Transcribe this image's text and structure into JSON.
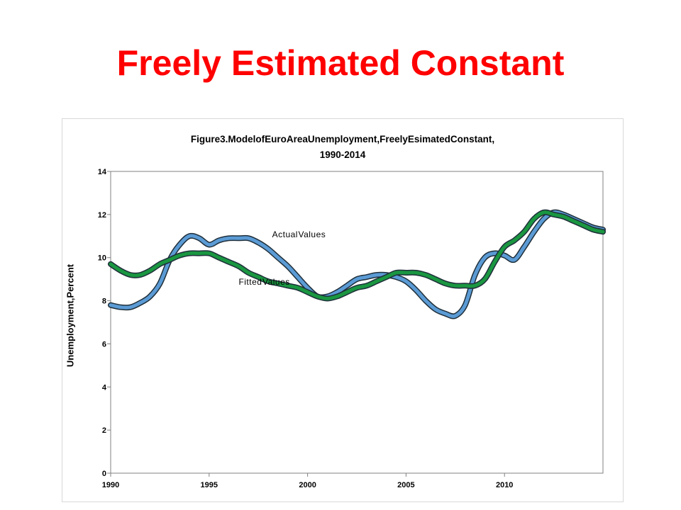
{
  "slide": {
    "title": "Freely Estimated Constant"
  },
  "chart_data": {
    "type": "line",
    "title_line1": "Figure\u001f3.\u001fModel\u001fof\u001fEuro\u001fArea\u001fUnemployment,\u001fFreely\u001fEs\u001fimated\u001fConstant,\u001f",
    "title_line2": "1990-2014\u001f\u001f",
    "ylabel": "Unemployment,\u001fPercent\u001f",
    "xlabel": "",
    "xlim": [
      1990,
      2015
    ],
    "ylim": [
      0,
      14
    ],
    "x_ticks": [
      {
        "value": 1990,
        "label": "1990\u001f"
      },
      {
        "value": 1995,
        "label": "1995\u001f"
      },
      {
        "value": 2000,
        "label": "2000\u001f"
      },
      {
        "value": 2005,
        "label": "2005\u001f"
      },
      {
        "value": 2010,
        "label": "2010\u001f"
      }
    ],
    "y_ticks": [
      {
        "value": 0,
        "label": "0\u001f"
      },
      {
        "value": 2,
        "label": "2\u001f"
      },
      {
        "value": 4,
        "label": "4\u001f"
      },
      {
        "value": 6,
        "label": "6\u001f"
      },
      {
        "value": 8,
        "label": "8\u001f"
      },
      {
        "value": 10,
        "label": "10\u001f"
      },
      {
        "value": 12,
        "label": "12\u001f"
      },
      {
        "value": 14,
        "label": "14\u001f"
      }
    ],
    "grid": false,
    "series": [
      {
        "name": "Actual\u001fValues\u001f",
        "color": "#5b9bd5",
        "x": [
          1990,
          1990.5,
          1991,
          1991.5,
          1992,
          1992.5,
          1993,
          1993.5,
          1994,
          1994.5,
          1995,
          1995.5,
          1996,
          1996.5,
          1997,
          1997.5,
          1998,
          1998.5,
          1999,
          1999.5,
          2000,
          2000.5,
          2001,
          2001.5,
          2002,
          2002.5,
          2003,
          2003.5,
          2004,
          2004.5,
          2005,
          2005.5,
          2006,
          2006.5,
          2007,
          2007.5,
          2008,
          2008.5,
          2009,
          2009.5,
          2010,
          2010.5,
          2011,
          2011.5,
          2012,
          2012.5,
          2013,
          2013.5,
          2014,
          2014.5,
          2015
        ],
        "values": [
          7.8,
          7.7,
          7.7,
          7.9,
          8.2,
          8.8,
          9.9,
          10.6,
          11.0,
          10.9,
          10.6,
          10.8,
          10.9,
          10.9,
          10.9,
          10.7,
          10.4,
          10.0,
          9.6,
          9.1,
          8.6,
          8.2,
          8.2,
          8.4,
          8.7,
          9.0,
          9.1,
          9.2,
          9.2,
          9.1,
          8.9,
          8.5,
          8.0,
          7.6,
          7.4,
          7.3,
          7.8,
          9.2,
          10.0,
          10.2,
          10.1,
          9.9,
          10.5,
          11.2,
          11.8,
          12.1,
          12.0,
          11.8,
          11.6,
          11.4,
          11.3
        ]
      },
      {
        "name": "Fitted\u001fValues\u001f",
        "color": "#1a9641",
        "x": [
          1990,
          1990.5,
          1991,
          1991.5,
          1992,
          1992.5,
          1993,
          1993.5,
          1994,
          1994.5,
          1995,
          1995.5,
          1996,
          1996.5,
          1997,
          1997.5,
          1998,
          1998.5,
          1999,
          1999.5,
          2000,
          2000.5,
          2001,
          2001.5,
          2002,
          2002.5,
          2003,
          2003.5,
          2004,
          2004.5,
          2005,
          2005.5,
          2006,
          2006.5,
          2007,
          2007.5,
          2008,
          2008.5,
          2009,
          2009.5,
          2010,
          2010.5,
          2011,
          2011.5,
          2012,
          2012.5,
          2013,
          2013.5,
          2014,
          2014.5,
          2015
        ],
        "values": [
          9.7,
          9.4,
          9.2,
          9.2,
          9.4,
          9.7,
          9.9,
          10.1,
          10.2,
          10.2,
          10.2,
          10.0,
          9.8,
          9.6,
          9.3,
          9.1,
          8.9,
          8.8,
          8.7,
          8.6,
          8.4,
          8.2,
          8.1,
          8.2,
          8.4,
          8.6,
          8.7,
          8.9,
          9.1,
          9.3,
          9.3,
          9.3,
          9.2,
          9.0,
          8.8,
          8.7,
          8.7,
          8.7,
          9.0,
          9.8,
          10.5,
          10.8,
          11.2,
          11.8,
          12.1,
          12.0,
          11.9,
          11.7,
          11.5,
          11.3,
          11.2
        ]
      }
    ],
    "annotations": [
      {
        "text": "Actual\u001fValues\u001f",
        "x": 1998.2,
        "y": 10.95
      },
      {
        "text": "Fitted\u001fValues\u001f",
        "x": 1996.5,
        "y": 8.75
      }
    ]
  }
}
